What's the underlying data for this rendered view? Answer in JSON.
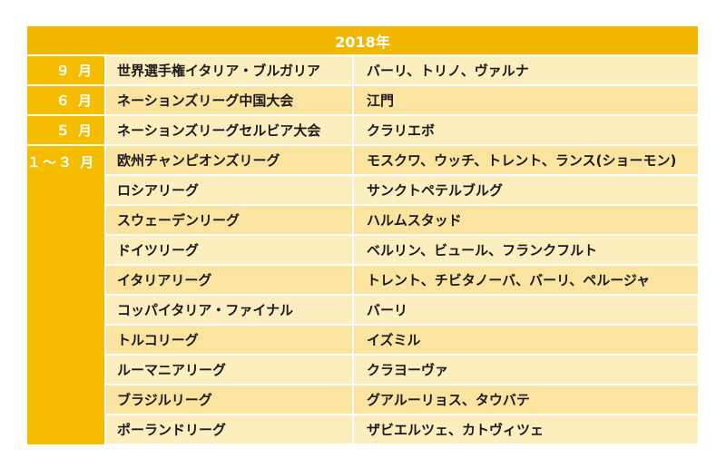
{
  "table": {
    "year": "2018年",
    "rows": [
      {
        "month": "９ 月",
        "competition": "世界選手権イタリア・ブルガリア",
        "venue": "バーリ、トリノ、ヴァルナ"
      },
      {
        "month": "６ 月",
        "competition": "ネーションズリーグ中国大会",
        "venue": "江門"
      },
      {
        "month": "５ 月",
        "competition": "ネーションズリーグセルビア大会",
        "venue": "クラリエボ"
      },
      {
        "month": "１～３ 月",
        "competition": "欧州チャンピオンズリーグ",
        "venue": "モスクワ、ウッチ、トレント、ランス(ショーモン)"
      },
      {
        "competition": "ロシアリーグ",
        "venue": "サンクトペテルブルグ"
      },
      {
        "competition": "スウェーデンリーグ",
        "venue": "ハルムスタッド"
      },
      {
        "competition": "ドイツリーグ",
        "venue": "ベルリン、ビュール、フランクフルト"
      },
      {
        "competition": "イタリアリーグ",
        "venue": "トレント、チビタノーバ、バーリ、ペルージャ"
      },
      {
        "competition": "コッパイタリア・ファイナル",
        "venue": "バーリ"
      },
      {
        "competition": "トルコリーグ",
        "venue": "イズミル"
      },
      {
        "competition": "ルーマニアリーグ",
        "venue": "クラヨーヴァ"
      },
      {
        "competition": "ブラジルリーグ",
        "venue": "グアルーリョス、タウバテ"
      },
      {
        "competition": "ポーランドリーグ",
        "venue": "ザビエルツェ、カトヴィツェ"
      }
    ]
  },
  "colors": {
    "header": "#f2b700",
    "month_cell": "#f6bd00",
    "row_light": "#fdeec0",
    "row_dark": "#fbe3a0"
  }
}
